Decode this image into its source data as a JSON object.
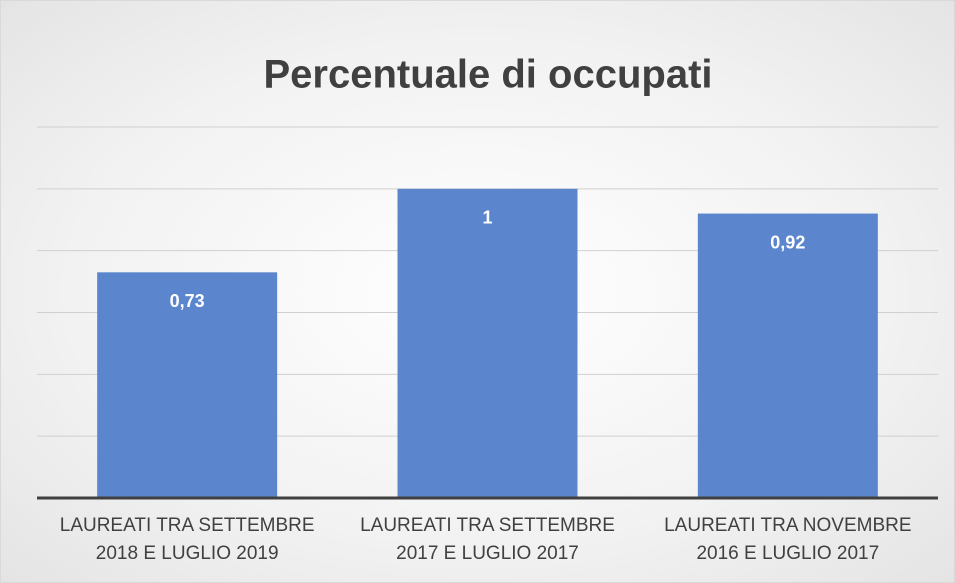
{
  "chart_data": {
    "type": "bar",
    "title": "Percentuale di occupati",
    "categories": [
      "LAUREATI TRA SETTEMBRE 2018 E LUGLIO 2019",
      "LAUREATI TRA SETTEMBRE 2017 E LUGLIO 2017",
      "LAUREATI TRA NOVEMBRE 2016 E LUGLIO 2017"
    ],
    "values": [
      0.73,
      1,
      0.92
    ],
    "value_labels": [
      "0,73",
      "1",
      "0,92"
    ],
    "color": "#5b86cd",
    "ylim": [
      0,
      1.2
    ],
    "yticks": [
      0,
      0.2,
      0.4,
      0.6,
      0.8,
      1,
      1.2
    ],
    "grid": true
  }
}
